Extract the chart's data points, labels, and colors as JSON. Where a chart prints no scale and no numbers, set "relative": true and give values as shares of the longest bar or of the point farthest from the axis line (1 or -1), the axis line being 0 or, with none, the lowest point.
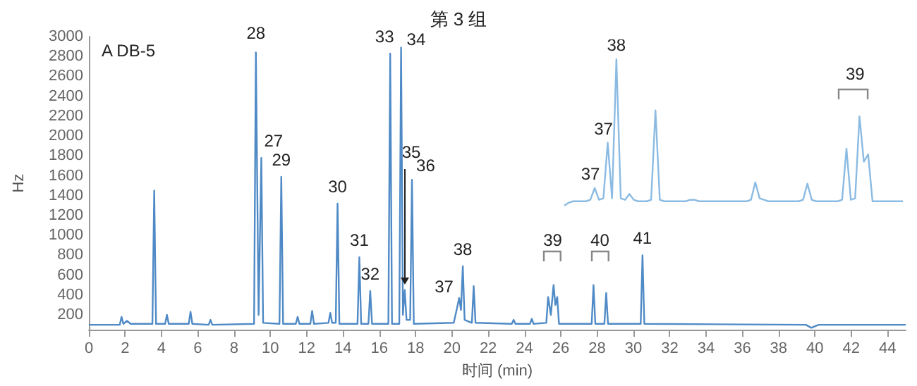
{
  "chart_data": [
    {
      "type": "line",
      "title": "第 3 组",
      "xlabel": "时间 (min)",
      "ylabel": "Hz",
      "xlim": [
        0,
        45
      ],
      "xticks": [
        0,
        2,
        4,
        6,
        8,
        10,
        12,
        14,
        16,
        18,
        20,
        22,
        24,
        26,
        28,
        30,
        32,
        34,
        36,
        38,
        40,
        42,
        44
      ],
      "ylim": [
        50,
        3000
      ],
      "yticks": [
        200,
        400,
        600,
        800,
        1000,
        1200,
        1400,
        1600,
        1800,
        2000,
        2200,
        2400,
        2600,
        2800,
        3000
      ],
      "grid": false,
      "marker": "none",
      "series": [
        {
          "color": "#4f8ac6",
          "x": [
            0,
            1.7,
            1.8,
            1.9,
            2.1,
            2.3,
            3.5,
            3.6,
            3.7,
            4.2,
            4.3,
            4.4,
            5.5,
            5.6,
            5.7,
            6.6,
            6.7,
            6.8,
            9.1,
            9.2,
            9.35,
            9.5,
            9.6,
            10.5,
            10.6,
            10.7,
            11.4,
            11.5,
            11.6,
            12.2,
            12.3,
            12.4,
            13.2,
            13.3,
            13.4,
            13.6,
            13.7,
            13.8,
            14.8,
            14.9,
            15,
            15.4,
            15.5,
            15.6,
            16.5,
            16.6,
            16.7,
            17.1,
            17.2,
            17.3,
            17.4,
            17.5,
            17.7,
            17.8,
            17.9,
            20.1,
            20.2,
            20.4,
            20.5,
            20.6,
            20.7,
            21.1,
            21.2,
            21.3,
            23.3,
            23.4,
            23.5,
            24.3,
            24.4,
            24.5,
            25.2,
            25.3,
            25.45,
            25.6,
            25.7,
            25.8,
            25.9,
            27.7,
            27.8,
            27.9,
            28.4,
            28.5,
            28.6,
            30.4,
            30.5,
            30.6,
            39.5,
            39.8,
            40.2,
            45
          ],
          "values": [
            100,
            100,
            180,
            110,
            140,
            110,
            110,
            1450,
            110,
            110,
            200,
            110,
            110,
            230,
            110,
            100,
            150,
            100,
            110,
            2840,
            200,
            1780,
            120,
            110,
            1590,
            110,
            110,
            180,
            110,
            110,
            240,
            110,
            120,
            220,
            120,
            120,
            1320,
            110,
            110,
            780,
            110,
            110,
            440,
            110,
            110,
            2830,
            110,
            110,
            2890,
            200,
            450,
            150,
            150,
            1560,
            110,
            120,
            200,
            370,
            250,
            690,
            150,
            120,
            490,
            120,
            110,
            150,
            110,
            110,
            160,
            110,
            120,
            380,
            200,
            500,
            300,
            380,
            110,
            110,
            500,
            110,
            110,
            420,
            110,
            110,
            800,
            110,
            100,
            70,
            100,
            100
          ]
        }
      ],
      "annotations": [
        "A DB-5",
        {
          "text": "28",
          "x": 9.2,
          "y": 2840
        },
        {
          "text": "27",
          "x": 9.5,
          "y": 1780
        },
        {
          "text": "29",
          "x": 10.6,
          "y": 1590
        },
        {
          "text": "30",
          "x": 13.7,
          "y": 1320
        },
        {
          "text": "31",
          "x": 14.9,
          "y": 780
        },
        {
          "text": "32",
          "x": 15.5,
          "y": 440
        },
        {
          "text": "33",
          "x": 16.6,
          "y": 2830
        },
        {
          "text": "34",
          "x": 17.2,
          "y": 2890
        },
        {
          "text": "35",
          "x": 17.4,
          "y": 450
        },
        {
          "text": "36",
          "x": 17.8,
          "y": 1560
        },
        {
          "text": "37",
          "x": 20.4,
          "y": 370
        },
        {
          "text": "38",
          "x": 20.6,
          "y": 690
        },
        {
          "text": "39",
          "x": 25.55,
          "y": 500
        },
        {
          "text": "40",
          "x": 28.15,
          "y": 500
        },
        {
          "text": "41",
          "x": 30.5,
          "y": 800
        }
      ]
    },
    {
      "type": "line",
      "relative": true,
      "tick_labels": false,
      "grid": false,
      "marker": "none",
      "categories": [
        null,
        null,
        null,
        null,
        null,
        null,
        null,
        null,
        null,
        null,
        null,
        null,
        null,
        null,
        null,
        null,
        null,
        null,
        null,
        null,
        null,
        null,
        null,
        null,
        null,
        null,
        null,
        null,
        null,
        null,
        null,
        null,
        null,
        null,
        null,
        null,
        null,
        null,
        null,
        null,
        null,
        null,
        null,
        null,
        null,
        null,
        null,
        null,
        null,
        null,
        null,
        null,
        null,
        null,
        null,
        null,
        null,
        null,
        null,
        null,
        null,
        null,
        null,
        null,
        null,
        null,
        null,
        null,
        null,
        null,
        null,
        null,
        null,
        null,
        null,
        null,
        null,
        null,
        null
      ],
      "series": [
        {
          "color": "#8bbbe3",
          "values": [
            0,
            0.02,
            0.03,
            0.03,
            0.03,
            0.03,
            0.04,
            0.12,
            0.04,
            0.05,
            0.43,
            0.05,
            1,
            0.05,
            0.04,
            0.08,
            0.04,
            0.03,
            0.03,
            0.03,
            0.04,
            0.65,
            0.04,
            0.03,
            0.03,
            0.03,
            0.03,
            0.03,
            0.03,
            0.04,
            0.04,
            0.03,
            0.03,
            0.03,
            0.03,
            0.03,
            0.03,
            0.03,
            0.03,
            0.03,
            0.03,
            0.03,
            0.03,
            0.04,
            0.16,
            0.05,
            0.04,
            0.03,
            0.03,
            0.03,
            0.03,
            0.03,
            0.03,
            0.03,
            0.03,
            0.04,
            0.15,
            0.04,
            0.03,
            0.03,
            0.03,
            0.03,
            0.03,
            0.03,
            0.04,
            0.39,
            0.04,
            0.05,
            0.61,
            0.3,
            0.35,
            0.03,
            0.03,
            0.03,
            0.03,
            0.03,
            0.03,
            0.03,
            0.03
          ]
        }
      ],
      "annotations": [
        "37",
        "37",
        "38",
        "39"
      ]
    }
  ]
}
